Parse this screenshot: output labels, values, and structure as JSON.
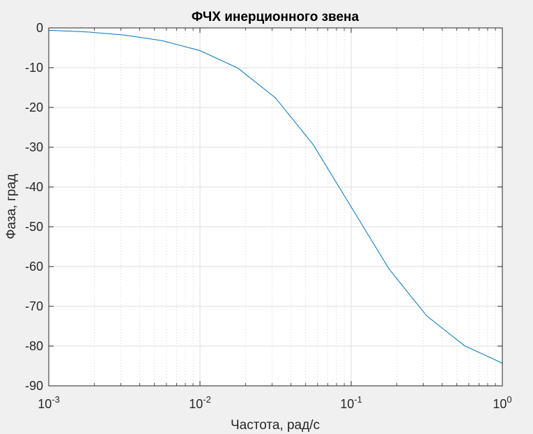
{
  "chart_data": {
    "type": "line",
    "title": "ФЧХ инерционного звена",
    "xlabel": "Частота, рад/с",
    "ylabel": "Фаза, град",
    "x_scale": "log",
    "xlim": [
      0.001,
      1
    ],
    "ylim": [
      -90,
      0
    ],
    "grid": true,
    "minor_grid_x": true,
    "x_ticks": [
      {
        "value": 0.001,
        "base": "10",
        "exp": "-3"
      },
      {
        "value": 0.01,
        "base": "10",
        "exp": "-2"
      },
      {
        "value": 0.1,
        "base": "10",
        "exp": "-1"
      },
      {
        "value": 1,
        "base": "10",
        "exp": "0"
      }
    ],
    "y_ticks": [
      0,
      -10,
      -20,
      -30,
      -40,
      -50,
      -60,
      -70,
      -80,
      -90
    ],
    "line_color": "#0072bd",
    "series": [
      {
        "x": [
          0.001,
          0.00178,
          0.00316,
          0.00562,
          0.01,
          0.0178,
          0.0316,
          0.0562,
          0.1,
          0.178,
          0.316,
          0.562,
          1
        ],
        "y": [
          -0.6,
          -1.0,
          -1.8,
          -3.2,
          -5.7,
          -10.1,
          -17.6,
          -29.4,
          -45.0,
          -60.6,
          -72.4,
          -79.9,
          -84.3
        ]
      }
    ]
  }
}
